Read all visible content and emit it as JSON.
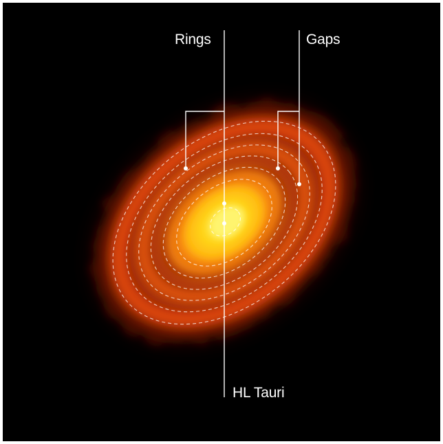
{
  "labels": {
    "rings": "Rings",
    "gaps": "Gaps",
    "star": "HL Tauri"
  },
  "colors": {
    "background": "#000000",
    "annotation": "#ffffff",
    "disk_outer": "#8a1b05",
    "disk_mid": "#e5520c",
    "disk_inner": "#ffaf1a",
    "disk_core": "#ffe21a"
  }
}
